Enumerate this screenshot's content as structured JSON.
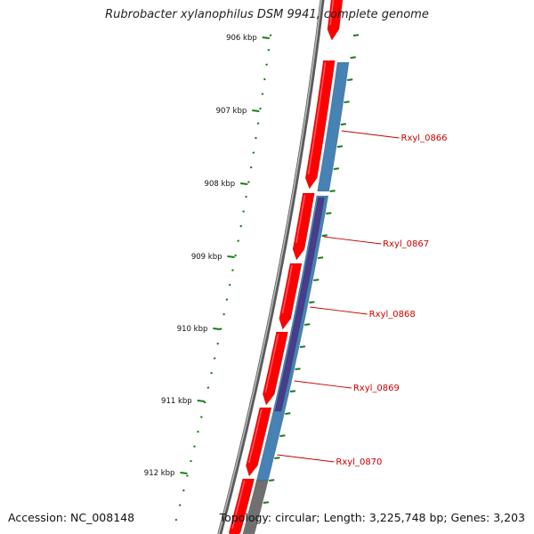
{
  "title": "Rubrobacter xylanophilus DSM 9941, complete genome",
  "accession": "Accession: NC_008148",
  "summary": "Topology: circular; Length: 3,225,748 bp; Genes: 3,203",
  "colors": {
    "background": "#ffffff",
    "backbone": "#808080",
    "cds_forward": "#ff0000",
    "cds_blue": "#4682b4",
    "cds_dark": "#483d8b",
    "gene_grey": "#707070",
    "tick": "#1a7a1a",
    "label": "#cc0000"
  },
  "scale_labels": [
    "906 kbp",
    "907 kbp",
    "908 kbp",
    "909 kbp",
    "910 kbp",
    "911 kbp",
    "912 kbp"
  ],
  "genes": [
    "Rxyl_0866",
    "Rxyl_0867",
    "Rxyl_0868",
    "Rxyl_0869",
    "Rxyl_0870"
  ]
}
